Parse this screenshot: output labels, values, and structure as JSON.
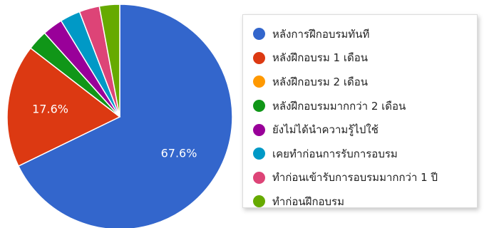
{
  "chart_data": {
    "type": "pie",
    "legend_position": "right",
    "slices": [
      {
        "label": "หลังการฝึกอบรมทันที",
        "value": 67.6,
        "value_label": "67.6%",
        "color": "#3366cc"
      },
      {
        "label": "หลังฝึกอบรม 1 เดือน",
        "value": 17.6,
        "value_label": "17.6%",
        "color": "#dc3912"
      },
      {
        "label": "หลังฝึกอบรม 2 เดือน",
        "value": 0,
        "value_label": "",
        "color": "#ff9900"
      },
      {
        "label": "หลังฝึกอบรมมากกว่า 2 เดือน",
        "value": 2.9,
        "value_label": "",
        "color": "#109618"
      },
      {
        "label": "ยังไม่ได้นำความรู้ไปใช้",
        "value": 2.9,
        "value_label": "",
        "color": "#990099"
      },
      {
        "label": "เคยทำก่อนการรับการอบรม",
        "value": 2.9,
        "value_label": "",
        "color": "#0099c6"
      },
      {
        "label": "ทำก่อนเข้ารับการอบรมมากกว่า 1 ปี",
        "value": 2.9,
        "value_label": "",
        "color": "#dd4477"
      },
      {
        "label": "ทำก่อนฝึกอบรม",
        "value": 2.9,
        "value_label": "",
        "color": "#66aa00"
      }
    ]
  }
}
